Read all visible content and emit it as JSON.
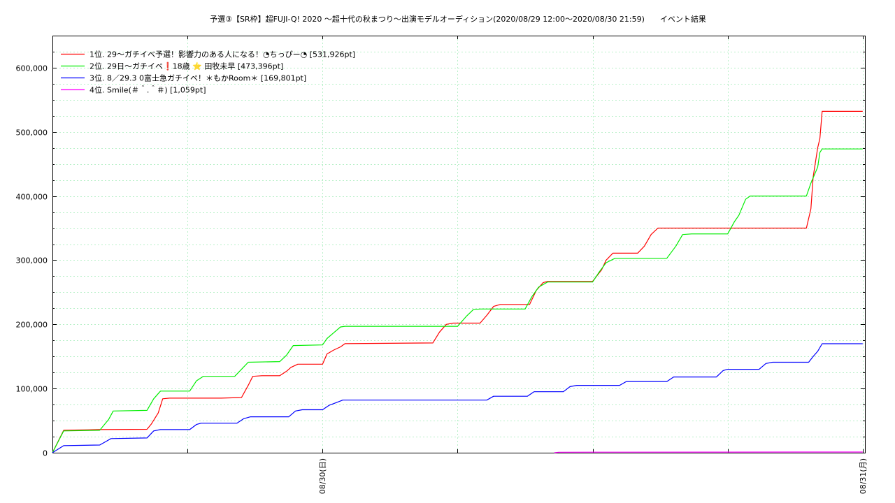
{
  "chart_data": {
    "type": "line",
    "title": "予選③【SR枠】超FUJI-Q! 2020 〜超十代の秋まつり〜出演モデルオーディション(2020/08/29 12:00〜2020/08/30 21:59)　　イベント結果",
    "xlabel": "",
    "ylabel": "",
    "x_unit": "hours since 2020/08/29 12:00",
    "xlim": [
      0,
      36.1
    ],
    "ylim": [
      0,
      650000
    ],
    "y_ticks": [
      0,
      100000,
      200000,
      300000,
      400000,
      500000,
      600000
    ],
    "y_tick_labels": [
      "0",
      "100,000",
      "200,000",
      "300,000",
      "400,000",
      "500,000",
      "600,000"
    ],
    "x_ticks": [
      12,
      36
    ],
    "x_tick_labels": [
      "08/30(日)",
      "08/31(月)"
    ],
    "grid": true,
    "legend_position": "top-left",
    "series": [
      {
        "name": "1位. 29〜ガチイベ予選！影響力のある人になる！◔ちっぴー◔ [531,926pt]",
        "color": "#ff0000",
        "points": [
          [
            0,
            0
          ],
          [
            0.5,
            35000
          ],
          [
            2.1,
            36000
          ],
          [
            4.2,
            36500
          ],
          [
            4.4,
            45000
          ],
          [
            4.7,
            62000
          ],
          [
            4.9,
            84000
          ],
          [
            5.2,
            85000
          ],
          [
            7.5,
            85000
          ],
          [
            8.4,
            86000
          ],
          [
            8.7,
            105000
          ],
          [
            8.9,
            119000
          ],
          [
            9.3,
            120000
          ],
          [
            10.1,
            120000
          ],
          [
            10.4,
            127000
          ],
          [
            10.6,
            133000
          ],
          [
            10.9,
            138000
          ],
          [
            12.0,
            138000
          ],
          [
            12.2,
            154000
          ],
          [
            12.5,
            160000
          ],
          [
            12.8,
            165000
          ],
          [
            13.0,
            170000
          ],
          [
            16.9,
            171000
          ],
          [
            17.2,
            188000
          ],
          [
            17.5,
            200000
          ],
          [
            17.8,
            202000
          ],
          [
            19.0,
            202000
          ],
          [
            19.3,
            214000
          ],
          [
            19.6,
            228000
          ],
          [
            19.9,
            231000
          ],
          [
            21.2,
            231000
          ],
          [
            21.5,
            253000
          ],
          [
            21.8,
            265000
          ],
          [
            22.0,
            267000
          ],
          [
            24.0,
            267000
          ],
          [
            24.4,
            285000
          ],
          [
            24.6,
            300000
          ],
          [
            24.9,
            311000
          ],
          [
            26.0,
            311000
          ],
          [
            26.3,
            322000
          ],
          [
            26.6,
            340000
          ],
          [
            26.9,
            350000
          ],
          [
            33.5,
            350000
          ],
          [
            33.7,
            380000
          ],
          [
            33.8,
            430000
          ],
          [
            34.0,
            475000
          ],
          [
            34.1,
            490000
          ],
          [
            34.2,
            531926
          ],
          [
            36.0,
            531926
          ]
        ]
      },
      {
        "name": "2位. 29日〜ガチイベ❗18歳 ⭐ 田牧未早 [473,396pt]",
        "color": "#00ee00",
        "points": [
          [
            0,
            0
          ],
          [
            0.5,
            34000
          ],
          [
            2.1,
            35000
          ],
          [
            2.5,
            52000
          ],
          [
            2.7,
            65000
          ],
          [
            4.2,
            66000
          ],
          [
            4.5,
            84000
          ],
          [
            4.8,
            96000
          ],
          [
            6.1,
            96000
          ],
          [
            6.4,
            112000
          ],
          [
            6.7,
            119000
          ],
          [
            8.1,
            119000
          ],
          [
            8.4,
            130000
          ],
          [
            8.7,
            141000
          ],
          [
            10.1,
            142000
          ],
          [
            10.4,
            152000
          ],
          [
            10.7,
            167000
          ],
          [
            12.0,
            168000
          ],
          [
            12.2,
            178000
          ],
          [
            12.5,
            187000
          ],
          [
            12.8,
            196000
          ],
          [
            13.0,
            197000
          ],
          [
            18.0,
            197000
          ],
          [
            18.4,
            213000
          ],
          [
            18.7,
            223000
          ],
          [
            19.0,
            224000
          ],
          [
            21.0,
            224000
          ],
          [
            21.3,
            243000
          ],
          [
            21.6,
            258000
          ],
          [
            22.0,
            266000
          ],
          [
            24.0,
            266000
          ],
          [
            24.3,
            282000
          ],
          [
            24.6,
            296000
          ],
          [
            25.0,
            303000
          ],
          [
            27.3,
            303000
          ],
          [
            27.7,
            322000
          ],
          [
            28.0,
            340000
          ],
          [
            28.4,
            341000
          ],
          [
            30.0,
            341000
          ],
          [
            30.3,
            360000
          ],
          [
            30.5,
            370000
          ],
          [
            30.8,
            395000
          ],
          [
            31.0,
            400000
          ],
          [
            33.5,
            400000
          ],
          [
            33.7,
            420000
          ],
          [
            34.0,
            445000
          ],
          [
            34.1,
            468000
          ],
          [
            34.2,
            473396
          ],
          [
            36.0,
            473396
          ]
        ]
      },
      {
        "name": "3位. 8／29.3 0富士急ガチイベ！＊もかRoom＊ [169,801pt]",
        "color": "#0000ff",
        "points": [
          [
            0,
            0
          ],
          [
            0.5,
            11000
          ],
          [
            2.1,
            12000
          ],
          [
            2.4,
            18000
          ],
          [
            2.6,
            22000
          ],
          [
            4.2,
            23000
          ],
          [
            4.5,
            34000
          ],
          [
            4.8,
            36000
          ],
          [
            6.1,
            36000
          ],
          [
            6.4,
            44000
          ],
          [
            6.6,
            46000
          ],
          [
            8.2,
            46000
          ],
          [
            8.5,
            53000
          ],
          [
            8.8,
            56000
          ],
          [
            10.5,
            56000
          ],
          [
            10.8,
            65000
          ],
          [
            11.1,
            67000
          ],
          [
            12.0,
            67000
          ],
          [
            12.3,
            74000
          ],
          [
            12.6,
            78000
          ],
          [
            12.9,
            82000
          ],
          [
            19.3,
            82000
          ],
          [
            19.6,
            88000
          ],
          [
            21.1,
            88000
          ],
          [
            21.4,
            95000
          ],
          [
            22.7,
            95000
          ],
          [
            23.0,
            103000
          ],
          [
            23.3,
            105000
          ],
          [
            25.2,
            105000
          ],
          [
            25.5,
            111000
          ],
          [
            27.3,
            111000
          ],
          [
            27.6,
            118000
          ],
          [
            29.5,
            118000
          ],
          [
            29.8,
            128000
          ],
          [
            30.0,
            130000
          ],
          [
            31.4,
            130000
          ],
          [
            31.7,
            139000
          ],
          [
            32.0,
            141000
          ],
          [
            33.6,
            141000
          ],
          [
            33.8,
            150000
          ],
          [
            34.0,
            158000
          ],
          [
            34.2,
            169801
          ],
          [
            36.0,
            169801
          ]
        ]
      },
      {
        "name": "4位. Smile(＃＾.＾＃) [1,059pt]",
        "color": "#ff00ff",
        "points": [
          [
            22.3,
            0
          ],
          [
            22.5,
            800
          ],
          [
            24.0,
            900
          ],
          [
            30.0,
            1000
          ],
          [
            34.0,
            1059
          ],
          [
            36.0,
            1059
          ]
        ]
      }
    ]
  }
}
